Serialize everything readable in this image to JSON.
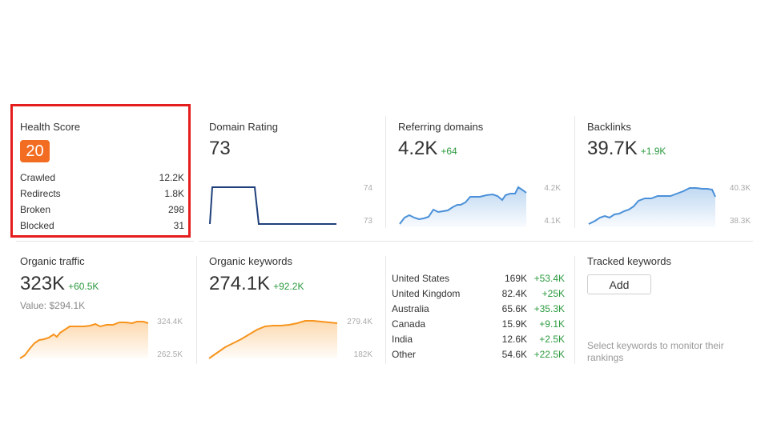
{
  "health": {
    "title": "Health Score",
    "score": "20",
    "rows": [
      {
        "label": "Crawled",
        "value": "12.2K"
      },
      {
        "label": "Redirects",
        "value": "1.8K"
      },
      {
        "label": "Broken",
        "value": "298"
      },
      {
        "label": "Blocked",
        "value": "31"
      }
    ]
  },
  "domain_rating": {
    "title": "Domain Rating",
    "value": "73",
    "axis_top": "74",
    "axis_bottom": "73"
  },
  "referring_domains": {
    "title": "Referring domains",
    "value": "4.2K",
    "delta": "+64",
    "axis_top": "4.2K",
    "axis_bottom": "4.1K"
  },
  "backlinks": {
    "title": "Backlinks",
    "value": "39.7K",
    "delta": "+1.9K",
    "axis_top": "40.3K",
    "axis_bottom": "38.3K"
  },
  "organic_traffic": {
    "title": "Organic traffic",
    "value": "323K",
    "delta": "+60.5K",
    "subvalue": "Value: $294.1K",
    "axis_top": "324.4K",
    "axis_bottom": "262.5K"
  },
  "organic_keywords": {
    "title": "Organic keywords",
    "value": "274.1K",
    "delta": "+92.2K",
    "axis_top": "279.4K",
    "axis_bottom": "182K"
  },
  "countries": [
    {
      "name": "United States",
      "value": "169K",
      "delta": "+53.4K"
    },
    {
      "name": "United Kingdom",
      "value": "82.4K",
      "delta": "+25K"
    },
    {
      "name": "Australia",
      "value": "65.6K",
      "delta": "+35.3K"
    },
    {
      "name": "Canada",
      "value": "15.9K",
      "delta": "+9.1K"
    },
    {
      "name": "India",
      "value": "12.6K",
      "delta": "+2.5K"
    },
    {
      "name": "Other",
      "value": "54.6K",
      "delta": "+22.5K"
    }
  ],
  "tracked_keywords": {
    "title": "Tracked keywords",
    "add_label": "Add",
    "hint": "Select keywords to monitor their rankings"
  },
  "colors": {
    "accent_orange": "#f26d21",
    "highlight_red": "#e51d1d",
    "positive_green": "#2b9a3e",
    "dr_line": "#1f3f7a",
    "blue_line": "#4a90d9",
    "orange_line": "#f7941d"
  }
}
